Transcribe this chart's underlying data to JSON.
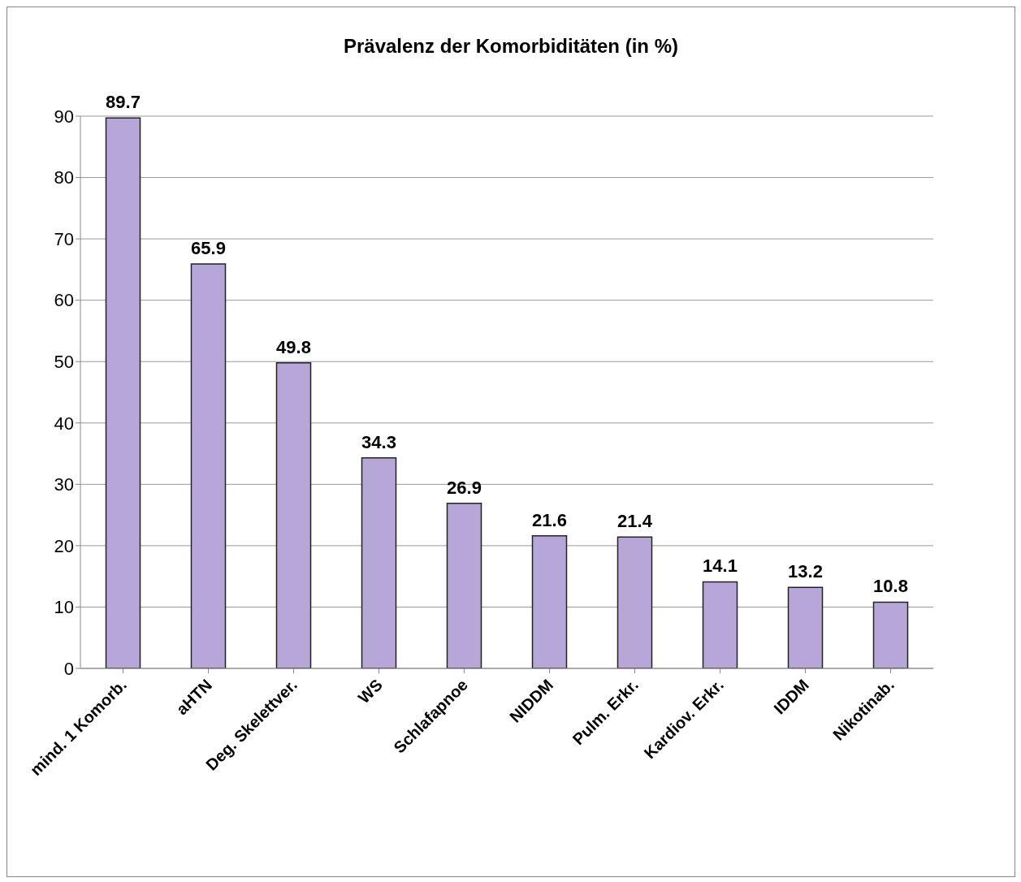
{
  "chart_data": {
    "type": "bar",
    "title": "Prävalenz der Komorbiditäten (in %)",
    "categories": [
      "mind. 1 Komorb.",
      "aHTN",
      "Deg. Skelettver.",
      "WS",
      "Schlafapnoe",
      "NIDDM",
      "Pulm. Erkr.",
      "Kardiov. Erkr.",
      "IDDM",
      "Nikotinab."
    ],
    "values": [
      89.7,
      65.9,
      49.8,
      34.3,
      26.9,
      21.6,
      21.4,
      14.1,
      13.2,
      10.8
    ],
    "color": "#b7a7d9",
    "ylim": [
      0,
      90
    ],
    "yticks": [
      0,
      10,
      20,
      30,
      40,
      50,
      60,
      70,
      80,
      90
    ],
    "grid": "y",
    "data_labels": true
  }
}
